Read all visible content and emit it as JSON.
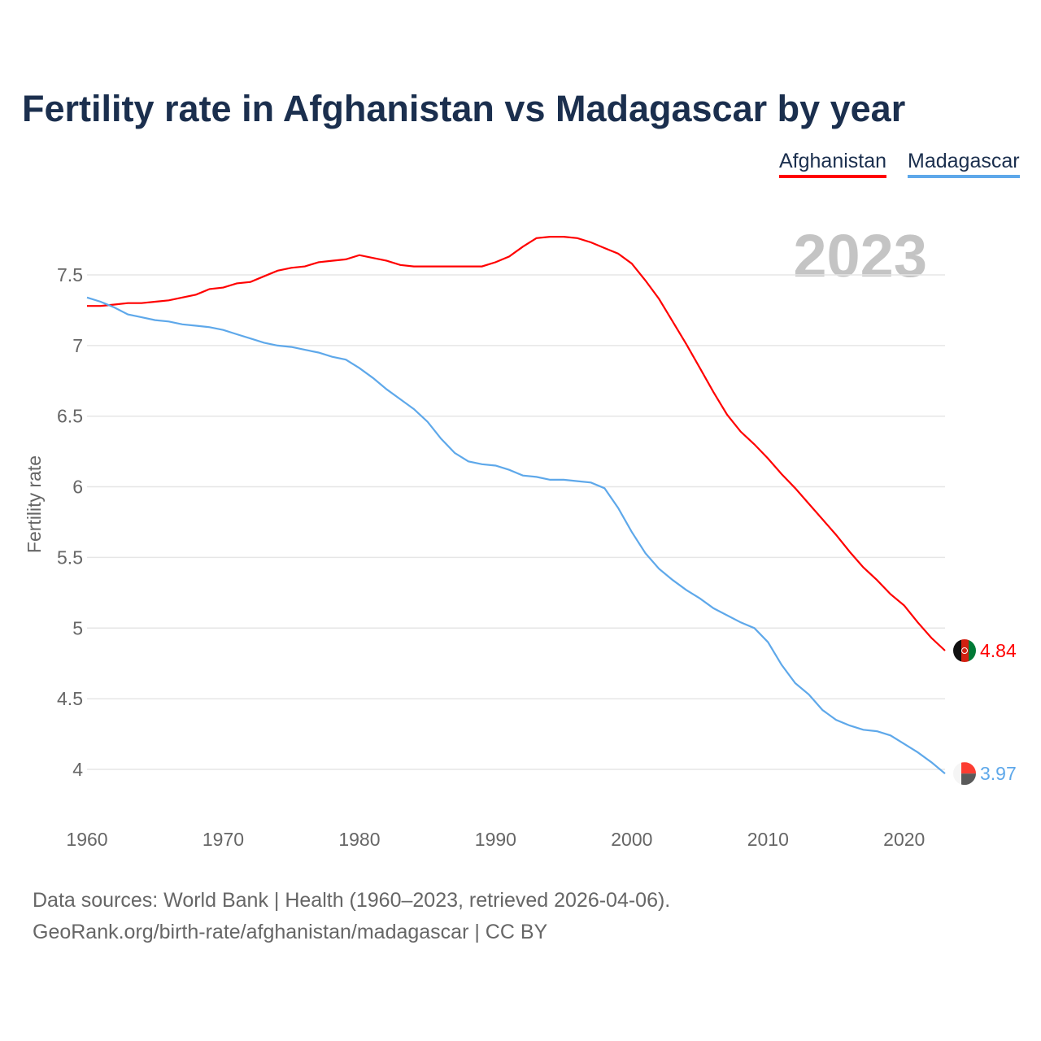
{
  "title": "Fertility rate in Afghanistan vs Madagascar by year",
  "legend": [
    "Afghanistan",
    "Madagascar"
  ],
  "year_label": "2023",
  "footer": {
    "line1": "Data sources: World Bank | Health (1960–2023, retrieved 2026-04-06).",
    "line2": "GeoRank.org/birth-rate/afghanistan/madagascar | CC BY"
  },
  "chart_data": {
    "type": "line",
    "title": "Fertility rate in Afghanistan vs Madagascar by year",
    "xlabel": "",
    "ylabel": "Fertility rate",
    "xlim": [
      1960,
      2023
    ],
    "ylim": [
      3.8,
      7.9
    ],
    "xticks": [
      1960,
      1970,
      1980,
      1990,
      2000,
      2010,
      2020
    ],
    "yticks": [
      4,
      4.5,
      5,
      5.5,
      6,
      6.5,
      7,
      7.5
    ],
    "ytick_labels": [
      "4",
      "4.5",
      "5",
      "5.5",
      "6",
      "6.5",
      "7",
      "7.5"
    ],
    "grid": true,
    "legend_placement": "top-right",
    "x": [
      1960,
      1961,
      1962,
      1963,
      1964,
      1965,
      1966,
      1967,
      1968,
      1969,
      1970,
      1971,
      1972,
      1973,
      1974,
      1975,
      1976,
      1977,
      1978,
      1979,
      1980,
      1981,
      1982,
      1983,
      1984,
      1985,
      1986,
      1987,
      1988,
      1989,
      1990,
      1991,
      1992,
      1993,
      1994,
      1995,
      1996,
      1997,
      1998,
      1999,
      2000,
      2001,
      2002,
      2003,
      2004,
      2005,
      2006,
      2007,
      2008,
      2009,
      2010,
      2011,
      2012,
      2013,
      2014,
      2015,
      2016,
      2017,
      2018,
      2019,
      2020,
      2021,
      2022,
      2023
    ],
    "series": [
      {
        "name": "Afghanistan",
        "color": "#ff0000",
        "end_label": "4.84",
        "values": [
          7.28,
          7.28,
          7.29,
          7.3,
          7.3,
          7.31,
          7.32,
          7.34,
          7.36,
          7.4,
          7.41,
          7.44,
          7.45,
          7.49,
          7.53,
          7.55,
          7.56,
          7.59,
          7.6,
          7.61,
          7.64,
          7.62,
          7.6,
          7.57,
          7.56,
          7.56,
          7.56,
          7.56,
          7.56,
          7.56,
          7.59,
          7.63,
          7.7,
          7.76,
          7.77,
          7.77,
          7.76,
          7.73,
          7.69,
          7.65,
          7.58,
          7.46,
          7.33,
          7.17,
          7.01,
          6.84,
          6.67,
          6.51,
          6.39,
          6.3,
          6.2,
          6.09,
          5.99,
          5.88,
          5.77,
          5.66,
          5.54,
          5.43,
          5.34,
          5.24,
          5.16,
          5.04,
          4.93,
          4.84
        ]
      },
      {
        "name": "Madagascar",
        "color": "#5ea8ea",
        "end_label": "3.97",
        "values": [
          7.34,
          7.31,
          7.27,
          7.22,
          7.2,
          7.18,
          7.17,
          7.15,
          7.14,
          7.13,
          7.11,
          7.08,
          7.05,
          7.02,
          7.0,
          6.99,
          6.97,
          6.95,
          6.92,
          6.9,
          6.84,
          6.77,
          6.69,
          6.62,
          6.55,
          6.46,
          6.34,
          6.24,
          6.18,
          6.16,
          6.15,
          6.12,
          6.08,
          6.07,
          6.05,
          6.05,
          6.04,
          6.03,
          5.99,
          5.85,
          5.68,
          5.53,
          5.42,
          5.34,
          5.27,
          5.21,
          5.14,
          5.09,
          5.04,
          5.0,
          4.9,
          4.74,
          4.61,
          4.53,
          4.42,
          4.35,
          4.31,
          4.28,
          4.27,
          4.24,
          4.18,
          4.12,
          4.05,
          3.97
        ]
      }
    ]
  }
}
